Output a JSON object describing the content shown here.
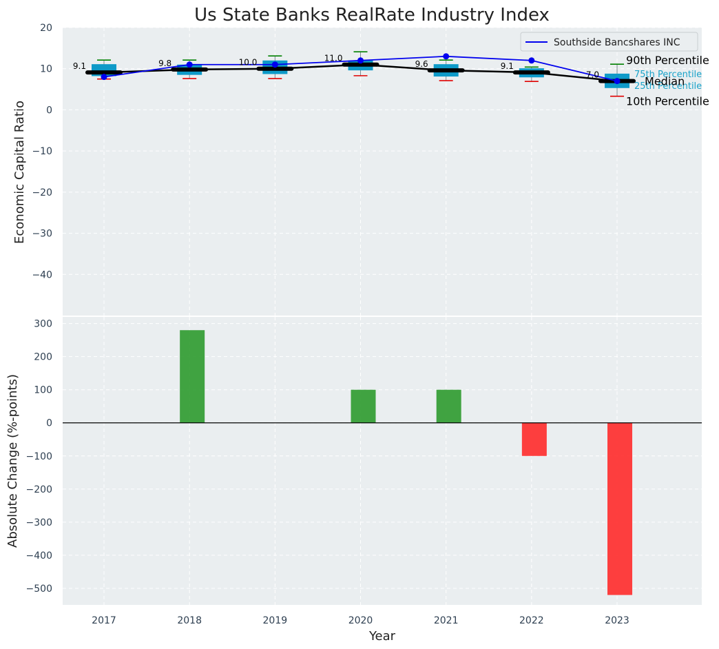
{
  "chart_data": [
    {
      "type": "box_line",
      "title": "Us State Banks RealRate Industry Index",
      "xlabel": "",
      "ylabel": "Economic Capital Ratio",
      "ylim": [
        -50,
        20
      ],
      "yticks": [
        20,
        10,
        0,
        -10,
        -20,
        -30,
        -40
      ],
      "ytick_labels": [
        "20",
        "10",
        "0",
        "−10",
        "−20",
        "−30",
        "−40"
      ],
      "categories": [
        "2017",
        "2018",
        "2019",
        "2020",
        "2021",
        "2022",
        "2023"
      ],
      "grid": true,
      "industry": {
        "p10": [
          7.5,
          7.6,
          7.6,
          8.3,
          7.1,
          6.9,
          3.3
        ],
        "p25": [
          8.2,
          8.5,
          8.7,
          9.6,
          8.1,
          7.9,
          5.3
        ],
        "median": [
          9.1,
          9.8,
          10.0,
          11.0,
          9.6,
          9.1,
          7.0
        ],
        "p75": [
          11.1,
          11.0,
          12.0,
          12.0,
          11.1,
          10.1,
          8.8
        ],
        "p90": [
          12.1,
          12.1,
          13.1,
          14.1,
          12.1,
          10.4,
          11.1
        ],
        "median_labels": [
          "9.1",
          "9.8",
          "10.0",
          "11.0",
          "9.6",
          "9.1",
          "7.0"
        ]
      },
      "series": [
        {
          "name": "Southside Bancshares INC",
          "values": [
            8,
            11,
            11,
            12,
            13,
            12,
            7
          ],
          "color": "#0000ee"
        }
      ],
      "legend": {
        "position": "top-right",
        "entries": [
          "Southside Bancshares INC"
        ]
      },
      "annotations": {
        "p90": "90th Percentile",
        "p75": "75th Percentile",
        "median": "Median",
        "p25": "25th Percentile",
        "p10": "10th Percentile"
      },
      "colors": {
        "box": "#0e9ac8",
        "median_line": "#000000",
        "p90_whisker": "#008000",
        "p10_whisker": "#e00000",
        "company": "#0000ee"
      }
    },
    {
      "type": "bar",
      "xlabel": "Year",
      "ylabel": "Absolute Change (%-points)",
      "ylim": [
        -550,
        320
      ],
      "yticks": [
        300,
        200,
        100,
        0,
        -100,
        -200,
        -300,
        -400,
        -500
      ],
      "ytick_labels": [
        "300",
        "200",
        "100",
        "0",
        "−100",
        "−200",
        "−300",
        "−400",
        "−500"
      ],
      "categories": [
        "2017",
        "2018",
        "2019",
        "2020",
        "2021",
        "2022",
        "2023"
      ],
      "values": [
        0,
        280,
        0,
        100,
        100,
        -100,
        -520
      ],
      "grid": true,
      "colors": {
        "positive": "#2e9a2e",
        "negative": "#ff2a2a",
        "zero_line": "#000000"
      }
    }
  ]
}
